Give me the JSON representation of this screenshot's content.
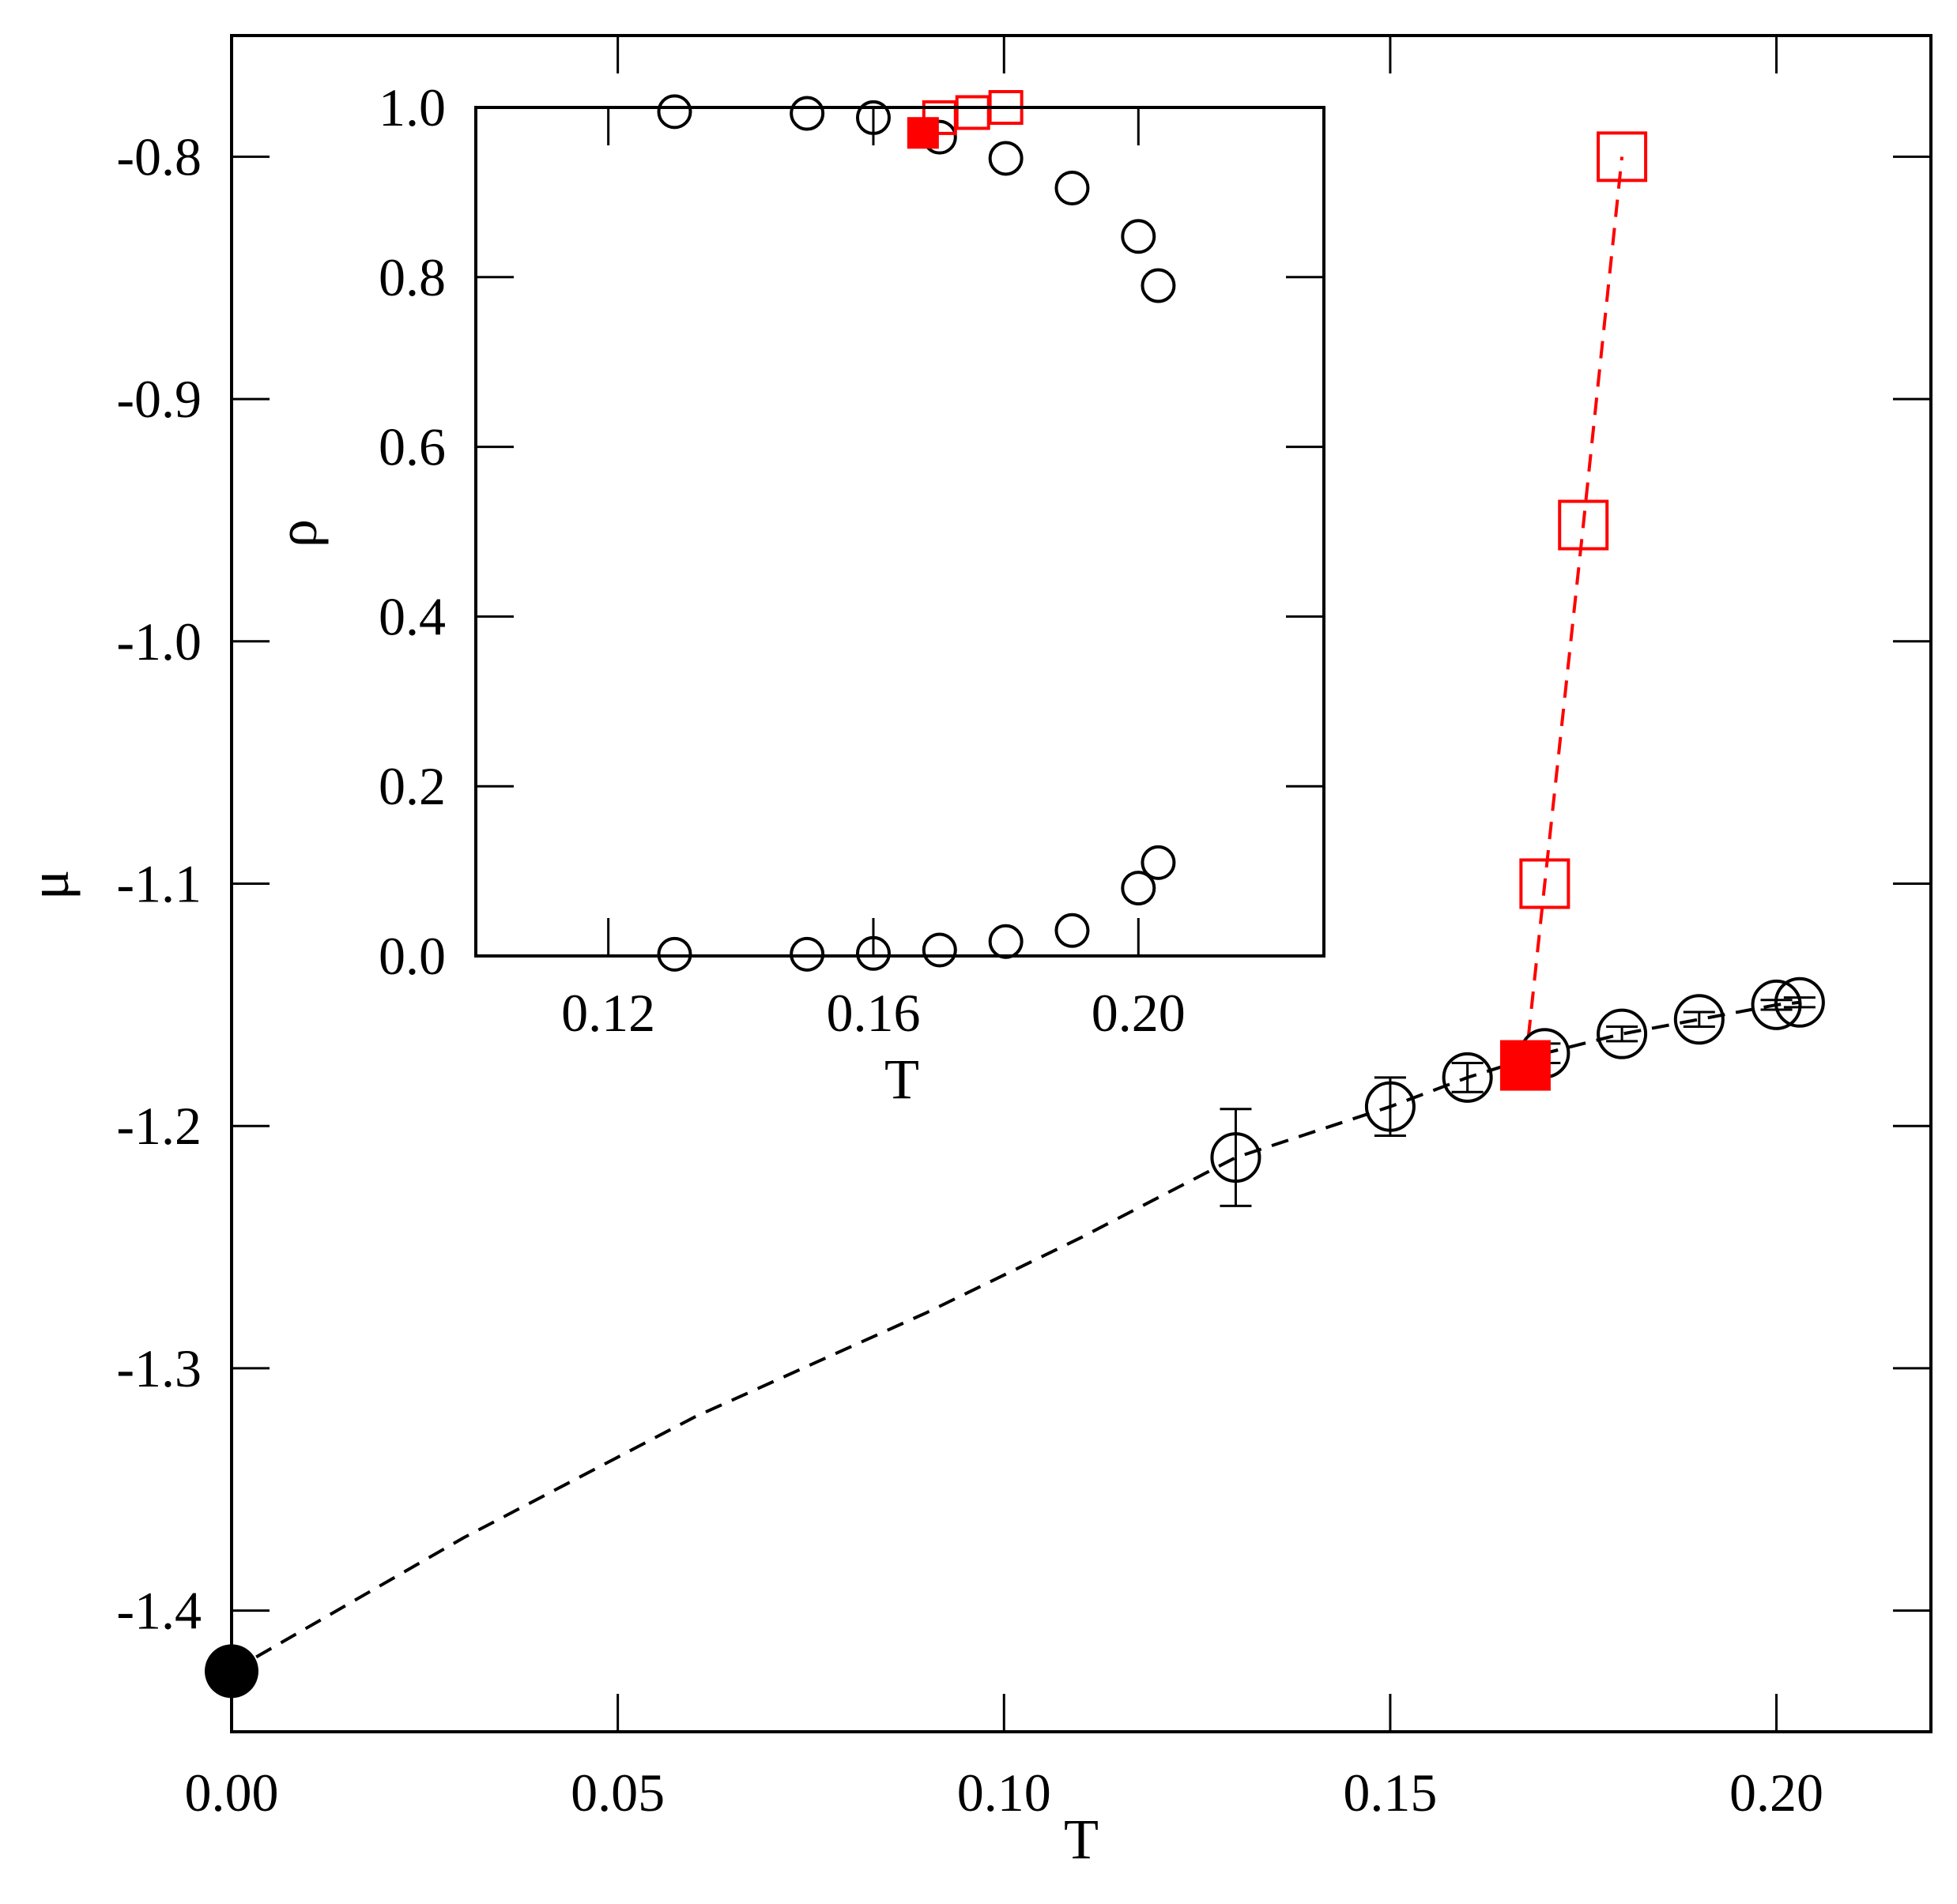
{
  "chart_data": [
    {
      "type": "line",
      "role": "main",
      "xlabel": "T",
      "ylabel": "μ",
      "xlim": [
        0.0,
        0.22
      ],
      "ylim": [
        -1.45,
        -0.75
      ],
      "xticks": [
        0.0,
        0.05,
        0.1,
        0.15,
        0.2
      ],
      "xtick_labels": [
        "0.00",
        "0.05",
        "0.10",
        "0.15",
        "0.20"
      ],
      "yticks": [
        -0.8,
        -0.9,
        -1.0,
        -1.1,
        -1.2,
        -1.3,
        -1.4
      ],
      "ytick_labels": [
        "-0.8",
        "-0.9",
        "-1.0",
        "-1.1",
        "-1.2",
        "-1.3",
        "-1.4"
      ],
      "series": [
        {
          "marker": "open-circle",
          "color": "#000000",
          "x": [
            0.13,
            0.15,
            0.16,
            0.17,
            0.18,
            0.19,
            0.2,
            0.203
          ],
          "y": [
            -1.213,
            -1.192,
            -1.18,
            -1.17,
            -1.162,
            -1.156,
            -1.15,
            -1.149
          ],
          "yerr": [
            0.02,
            0.012,
            0.006,
            0.004,
            0.003,
            0.003,
            0.002,
            0.002
          ]
        },
        {
          "marker": "filled-circle",
          "color": "#000000",
          "x": [
            0.0
          ],
          "y": [
            -1.425
          ]
        },
        {
          "marker": "none",
          "line": "dashed",
          "color": "#000000",
          "x": [
            0.0,
            0.03,
            0.06,
            0.09,
            0.11,
            0.13,
            0.15,
            0.16,
            0.17,
            0.18,
            0.19,
            0.2,
            0.203
          ],
          "y": [
            -1.425,
            -1.37,
            -1.32,
            -1.277,
            -1.246,
            -1.213,
            -1.192,
            -1.18,
            -1.17,
            -1.162,
            -1.156,
            -1.15,
            -1.149
          ]
        },
        {
          "marker": "open-square",
          "line": "dashed",
          "color": "#ff0000",
          "x": [
            0.1675,
            0.17,
            0.175,
            0.18
          ],
          "y": [
            -1.175,
            -1.1,
            -0.952,
            -0.8
          ]
        },
        {
          "marker": "filled-square",
          "color": "#ff0000",
          "x": [
            0.1675
          ],
          "y": [
            -1.175
          ]
        }
      ]
    },
    {
      "type": "scatter",
      "role": "inset",
      "xlabel": "T",
      "ylabel": "ρ",
      "xlim": [
        0.1,
        0.228
      ],
      "ylim": [
        0.0,
        1.0
      ],
      "xticks": [
        0.12,
        0.16,
        0.2
      ],
      "xtick_labels": [
        "0.12",
        "0.16",
        "0.20"
      ],
      "yticks": [
        0.0,
        0.2,
        0.4,
        0.6,
        0.8,
        1.0
      ],
      "ytick_labels": [
        "0.0",
        "0.2",
        "0.4",
        "0.6",
        "0.8",
        "1.0"
      ],
      "series": [
        {
          "marker": "open-circle",
          "color": "#000000",
          "x": [
            0.13,
            0.15,
            0.16,
            0.17,
            0.18,
            0.19,
            0.2,
            0.203,
            0.13,
            0.15,
            0.16,
            0.17,
            0.18,
            0.19,
            0.2,
            0.203
          ],
          "y": [
            0.995,
            0.993,
            0.988,
            0.965,
            0.94,
            0.905,
            0.848,
            0.79,
            0.002,
            0.002,
            0.003,
            0.007,
            0.017,
            0.03,
            0.08,
            0.11
          ]
        },
        {
          "marker": "open-square",
          "color": "#ff0000",
          "x": [
            0.17,
            0.175,
            0.18
          ],
          "y": [
            0.988,
            0.994,
            1.0
          ]
        },
        {
          "marker": "filled-square",
          "color": "#ff0000",
          "x": [
            0.1675
          ],
          "y": [
            0.97
          ]
        }
      ]
    }
  ]
}
